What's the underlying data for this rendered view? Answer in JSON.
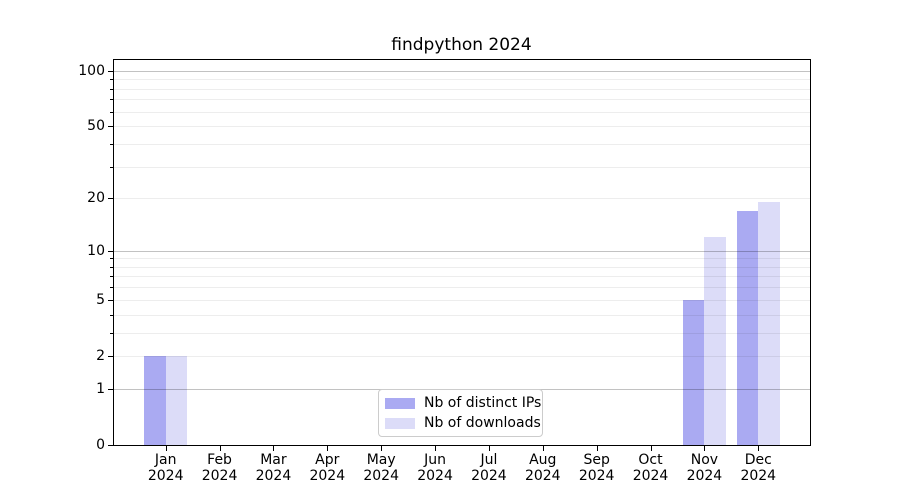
{
  "chart_data": {
    "type": "bar",
    "title": "findpython 2024",
    "categories": [
      "Jan",
      "Feb",
      "Mar",
      "Apr",
      "May",
      "Jun",
      "Jul",
      "Aug",
      "Sep",
      "Oct",
      "Nov",
      "Dec"
    ],
    "category_year": "2024",
    "series": [
      {
        "name": "Nb of distinct IPs",
        "color": "#aaaaf2",
        "values": [
          2,
          0,
          0,
          0,
          0,
          0,
          0,
          0,
          0,
          0,
          5,
          17
        ]
      },
      {
        "name": "Nb of downloads",
        "color": "#dcdcf8",
        "values": [
          2,
          0,
          0,
          0,
          0,
          0,
          0,
          0,
          0,
          0,
          12,
          19
        ]
      }
    ],
    "yscale": "log1p",
    "ylim": [
      0,
      115
    ],
    "yticks": [
      0,
      1,
      2,
      5,
      10,
      20,
      50,
      100
    ],
    "grid_major": [
      1,
      10,
      100
    ],
    "grid_minor": [
      2,
      3,
      4,
      5,
      6,
      7,
      8,
      9,
      20,
      30,
      40,
      50,
      60,
      70,
      80,
      90
    ],
    "grid": true,
    "legend_position": "lower center",
    "xlabel": "",
    "ylabel": ""
  },
  "colors": {
    "background": "#ffffff",
    "spine": "#000000",
    "text": "#000000",
    "grid_minor": "#ededed",
    "grid_major": "#c3c3c3",
    "legend_border": "#cccccc"
  }
}
